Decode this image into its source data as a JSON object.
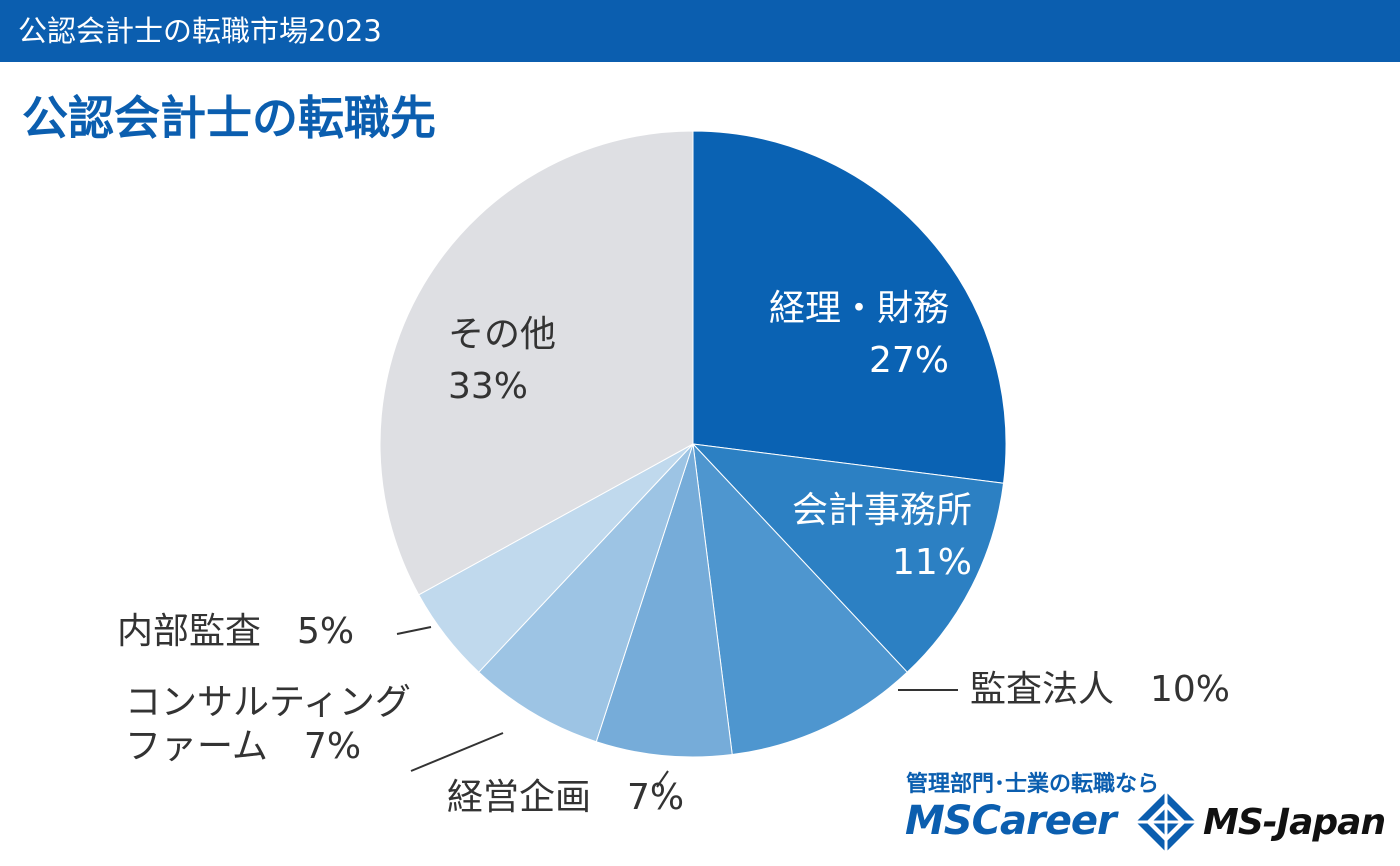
{
  "header": {
    "title": "公認会計士の転職市場2023"
  },
  "chart_data": {
    "type": "pie",
    "title": "公認会計士の転職先",
    "start": "12 o'clock, clockwise",
    "slices": [
      {
        "label": "経理・財務",
        "value": 27,
        "value_label": "27%",
        "color": "#0a62b3"
      },
      {
        "label": "会計事務所",
        "value": 11,
        "value_label": "11%",
        "color": "#2c80c3"
      },
      {
        "label": "監査法人",
        "value": 10,
        "value_label": "10%",
        "color": "#4e96cf"
      },
      {
        "label": "経営企画",
        "value": 7,
        "value_label": "7%",
        "color": "#76acd9"
      },
      {
        "label": "コンサルティングファーム",
        "value": 7,
        "value_label": "7%",
        "color": "#9dc4e4"
      },
      {
        "label": "内部監査",
        "value": 5,
        "value_label": "5%",
        "color": "#c0d9ed"
      },
      {
        "label": "その他",
        "value": 33,
        "value_label": "33%",
        "color": "#dedfe3"
      }
    ],
    "labels": {
      "keiri": "経理・財務",
      "keiri_pct": "27%",
      "kaikei": "会計事務所",
      "kaikei_pct": "11%",
      "kansa": "監査法人　10%",
      "keiei": "経営企画　7%",
      "consult_1": "コンサルティング",
      "consult_2": "ファーム　7%",
      "naibu": "内部監査　5%",
      "sonota": "その他",
      "sonota_pct": "33%"
    }
  },
  "brand": {
    "tagline": "管理部門･士業の転職なら",
    "mscareer": "MSCareer",
    "msjapan": "MS-Japan",
    "logo_icon": "diamond-logo-icon",
    "colors": {
      "primary": "#0b5eaf"
    }
  }
}
